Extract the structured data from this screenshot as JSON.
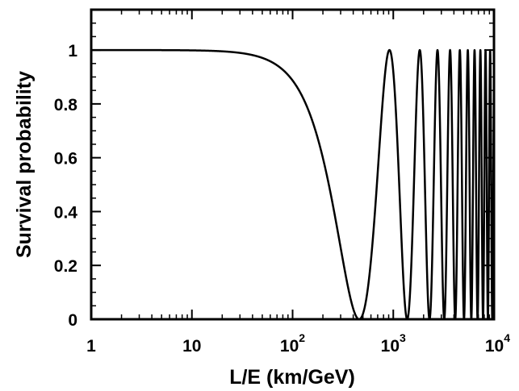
{
  "chart_data": {
    "type": "line",
    "title": "",
    "xlabel": "L/E (km/GeV)",
    "ylabel": "Survival probability",
    "xscale": "log",
    "xlim": [
      1,
      10000
    ],
    "ylim": [
      0,
      1.15
    ],
    "x_tick_values": [
      1,
      10,
      100,
      1000,
      10000
    ],
    "x_tick_labels": [
      {
        "base": "1",
        "exp": ""
      },
      {
        "base": "10",
        "exp": ""
      },
      {
        "base": "10",
        "exp": "2"
      },
      {
        "base": "10",
        "exp": "3"
      },
      {
        "base": "10",
        "exp": "4"
      }
    ],
    "y_tick_values": [
      0,
      0.2,
      0.4,
      0.6,
      0.8,
      1
    ],
    "y_tick_labels": [
      "0",
      "0.2",
      "0.4",
      "0.6",
      "0.8",
      "1"
    ],
    "grid": false,
    "series": [
      {
        "function": "1 - sin^2(1.27 * 2.7e-3 * L/E)",
        "mixing_sin2_2theta": 1.0,
        "delta_m2_eV2": 0.0027,
        "color": "#000000"
      }
    ]
  }
}
